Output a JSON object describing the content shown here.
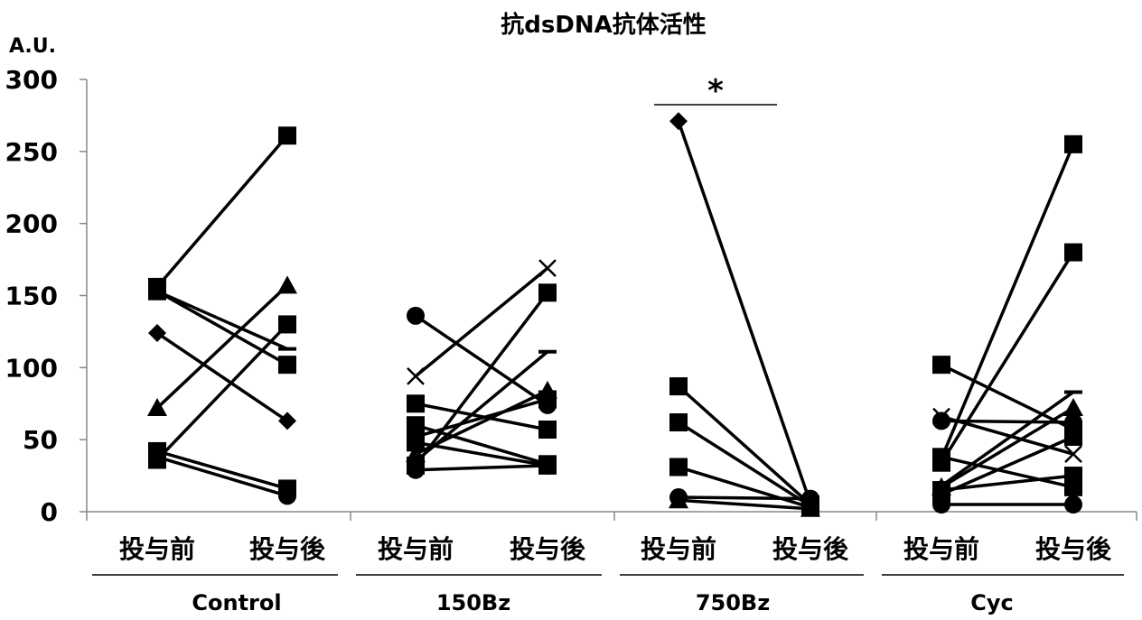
{
  "chart_data": {
    "type": "line",
    "title": "抗dsDNA抗体活性",
    "ylabel": "A.U.",
    "ylim": [
      0,
      300
    ],
    "yticks": [
      "0",
      "50",
      "100",
      "150",
      "200",
      "250",
      "300"
    ],
    "grid": false,
    "groups": [
      {
        "name": "Control",
        "categories": [
          "投与前",
          "投与後"
        ],
        "series": [
          {
            "marker": "square",
            "values": [
              156,
              261
            ]
          },
          {
            "marker": "triangle",
            "values": [
              72,
              157
            ]
          },
          {
            "marker": "dash",
            "values": [
              153,
              113
            ]
          },
          {
            "marker": "diamond",
            "values": [
              124,
              63
            ]
          },
          {
            "marker": "square",
            "values": [
              36,
              130
            ]
          },
          {
            "marker": "square",
            "values": [
              153,
              102
            ]
          },
          {
            "marker": "square",
            "values": [
              42,
              16
            ]
          },
          {
            "marker": "circle",
            "values": [
              38,
              11
            ]
          }
        ]
      },
      {
        "name": "150Bz",
        "categories": [
          "投与前",
          "投与後"
        ],
        "series": [
          {
            "marker": "x",
            "values": [
              94,
              169
            ]
          },
          {
            "marker": "circle",
            "values": [
              136,
              74
            ]
          },
          {
            "marker": "square",
            "values": [
              32,
              152
            ]
          },
          {
            "marker": "dash",
            "values": [
              35,
              111
            ]
          },
          {
            "marker": "triangle",
            "values": [
              40,
              84
            ]
          },
          {
            "marker": "square",
            "values": [
              75,
              57
            ]
          },
          {
            "marker": "square",
            "values": [
              60,
              33
            ]
          },
          {
            "marker": "square",
            "values": [
              48,
              32
            ]
          },
          {
            "marker": "circle",
            "values": [
              29,
              32
            ]
          },
          {
            "marker": "square",
            "values": [
              52,
              78
            ]
          }
        ]
      },
      {
        "name": "750Bz",
        "categories": [
          "投与前",
          "投与後"
        ],
        "series": [
          {
            "marker": "diamond",
            "values": [
              271,
              6
            ]
          },
          {
            "marker": "square",
            "values": [
              87,
              5
            ]
          },
          {
            "marker": "square",
            "values": [
              62,
              4
            ]
          },
          {
            "marker": "square",
            "values": [
              31,
              3
            ]
          },
          {
            "marker": "triangle",
            "values": [
              8,
              2
            ]
          },
          {
            "marker": "circle",
            "values": [
              10,
              9
            ]
          }
        ]
      },
      {
        "name": "Cyc",
        "categories": [
          "投与前",
          "投与後"
        ],
        "series": [
          {
            "marker": "square",
            "values": [
              37,
              255
            ]
          },
          {
            "marker": "square",
            "values": [
              34,
              180
            ]
          },
          {
            "marker": "square",
            "values": [
              102,
              57
            ]
          },
          {
            "marker": "x",
            "values": [
              66,
              40
            ]
          },
          {
            "marker": "circle",
            "values": [
              63,
              62
            ]
          },
          {
            "marker": "dash",
            "values": [
              18,
              83
            ]
          },
          {
            "marker": "triangle",
            "values": [
              17,
              72
            ]
          },
          {
            "marker": "square",
            "values": [
              38,
              17
            ]
          },
          {
            "marker": "square",
            "values": [
              15,
              25
            ]
          },
          {
            "marker": "circle",
            "values": [
              5,
              5
            ]
          },
          {
            "marker": "square",
            "values": [
              12,
              52
            ]
          }
        ]
      }
    ],
    "annotations": [
      {
        "text": "*",
        "group": "750Bz"
      }
    ]
  }
}
